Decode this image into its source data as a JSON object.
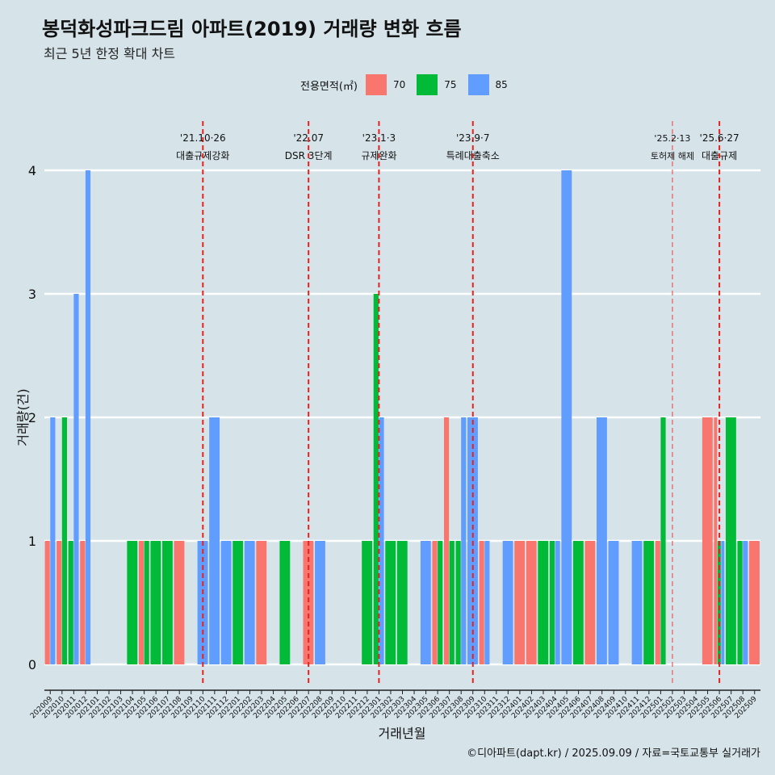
{
  "title": "봉덕화성파크드림 아파트(2019) 거래량 변화 흐름",
  "subtitle": "최근 5년 한정 확대 차트",
  "caption": "©디아파트(dapt.kr) / 2025.09.09 / 자료=국토교통부 실거래가",
  "legend": {
    "title": "전용면적(㎡)",
    "items": [
      {
        "label": "70",
        "color": "#f8766d"
      },
      {
        "label": "75",
        "color": "#00ba38"
      },
      {
        "label": "85",
        "color": "#619cff"
      }
    ]
  },
  "chart_data": {
    "type": "bar",
    "xlabel": "거래년월",
    "ylabel": "거래량(건)",
    "ylim": [
      0,
      4
    ],
    "yticks": [
      0,
      1,
      2,
      3,
      4
    ],
    "categories": [
      "202009",
      "202010",
      "202011",
      "202012",
      "202101",
      "202102",
      "202103",
      "202104",
      "202105",
      "202106",
      "202107",
      "202108",
      "202109",
      "202110",
      "202111",
      "202112",
      "202201",
      "202202",
      "202203",
      "202204",
      "202205",
      "202206",
      "202207",
      "202208",
      "202209",
      "202210",
      "202211",
      "202212",
      "202301",
      "202302",
      "202303",
      "202304",
      "202305",
      "202306",
      "202307",
      "202308",
      "202309",
      "202310",
      "202311",
      "202312",
      "202401",
      "202402",
      "202403",
      "202404",
      "202405",
      "202406",
      "202407",
      "202408",
      "202409",
      "202410",
      "202411",
      "202412",
      "202501",
      "202502",
      "202503",
      "202504",
      "202505",
      "202506",
      "202507",
      "202508",
      "202509"
    ],
    "series": [
      {
        "name": "70",
        "color": "#f8766d",
        "values": [
          1,
          1,
          0,
          1,
          0,
          0,
          0,
          0,
          1,
          0,
          0,
          1,
          0,
          0,
          0,
          0,
          0,
          0,
          1,
          0,
          0,
          0,
          1,
          0,
          0,
          0,
          0,
          0,
          0,
          0,
          0,
          0,
          0,
          1,
          2,
          0,
          0,
          1,
          0,
          0,
          1,
          1,
          0,
          0,
          0,
          0,
          1,
          0,
          0,
          0,
          0,
          0,
          1,
          0,
          0,
          0,
          2,
          2,
          0,
          0,
          1
        ]
      },
      {
        "name": "75",
        "color": "#00ba38",
        "values": [
          0,
          2,
          1,
          0,
          0,
          0,
          0,
          1,
          1,
          1,
          1,
          0,
          0,
          0,
          0,
          0,
          1,
          0,
          0,
          0,
          1,
          0,
          0,
          0,
          0,
          0,
          0,
          1,
          3,
          1,
          1,
          0,
          0,
          1,
          1,
          1,
          0,
          0,
          0,
          0,
          0,
          0,
          1,
          1,
          0,
          1,
          0,
          0,
          0,
          0,
          0,
          1,
          2,
          0,
          0,
          0,
          0,
          1,
          2,
          1,
          0
        ]
      },
      {
        "name": "85",
        "color": "#619cff",
        "values": [
          2,
          0,
          3,
          4,
          0,
          0,
          0,
          0,
          0,
          0,
          0,
          0,
          0,
          1,
          2,
          1,
          0,
          1,
          0,
          0,
          0,
          0,
          0,
          1,
          0,
          0,
          0,
          0,
          2,
          0,
          0,
          0,
          1,
          0,
          0,
          2,
          2,
          1,
          0,
          1,
          0,
          0,
          0,
          1,
          4,
          0,
          0,
          2,
          1,
          0,
          1,
          0,
          0,
          0,
          0,
          0,
          0,
          1,
          0,
          1,
          0
        ]
      }
    ],
    "annotations": [
      {
        "category": "202110",
        "line1": "'21.10·26",
        "line2": "대출규제강화",
        "style": "bold"
      },
      {
        "category": "202207",
        "line1": "'22.07",
        "line2": "DSR 3단계",
        "style": "bold"
      },
      {
        "category": "202301",
        "line1": "'23.1·3",
        "line2": "규제완화",
        "style": "bold"
      },
      {
        "category": "202309",
        "line1": "'23.9·7",
        "line2": "특례대출축소",
        "style": "bold"
      },
      {
        "category": "202502",
        "line1": "'25.2·13",
        "line2": "토허제 해제",
        "style": "thin"
      },
      {
        "category": "202506",
        "line1": "'25.6·27",
        "line2": "대출규제",
        "style": "bold"
      }
    ]
  }
}
